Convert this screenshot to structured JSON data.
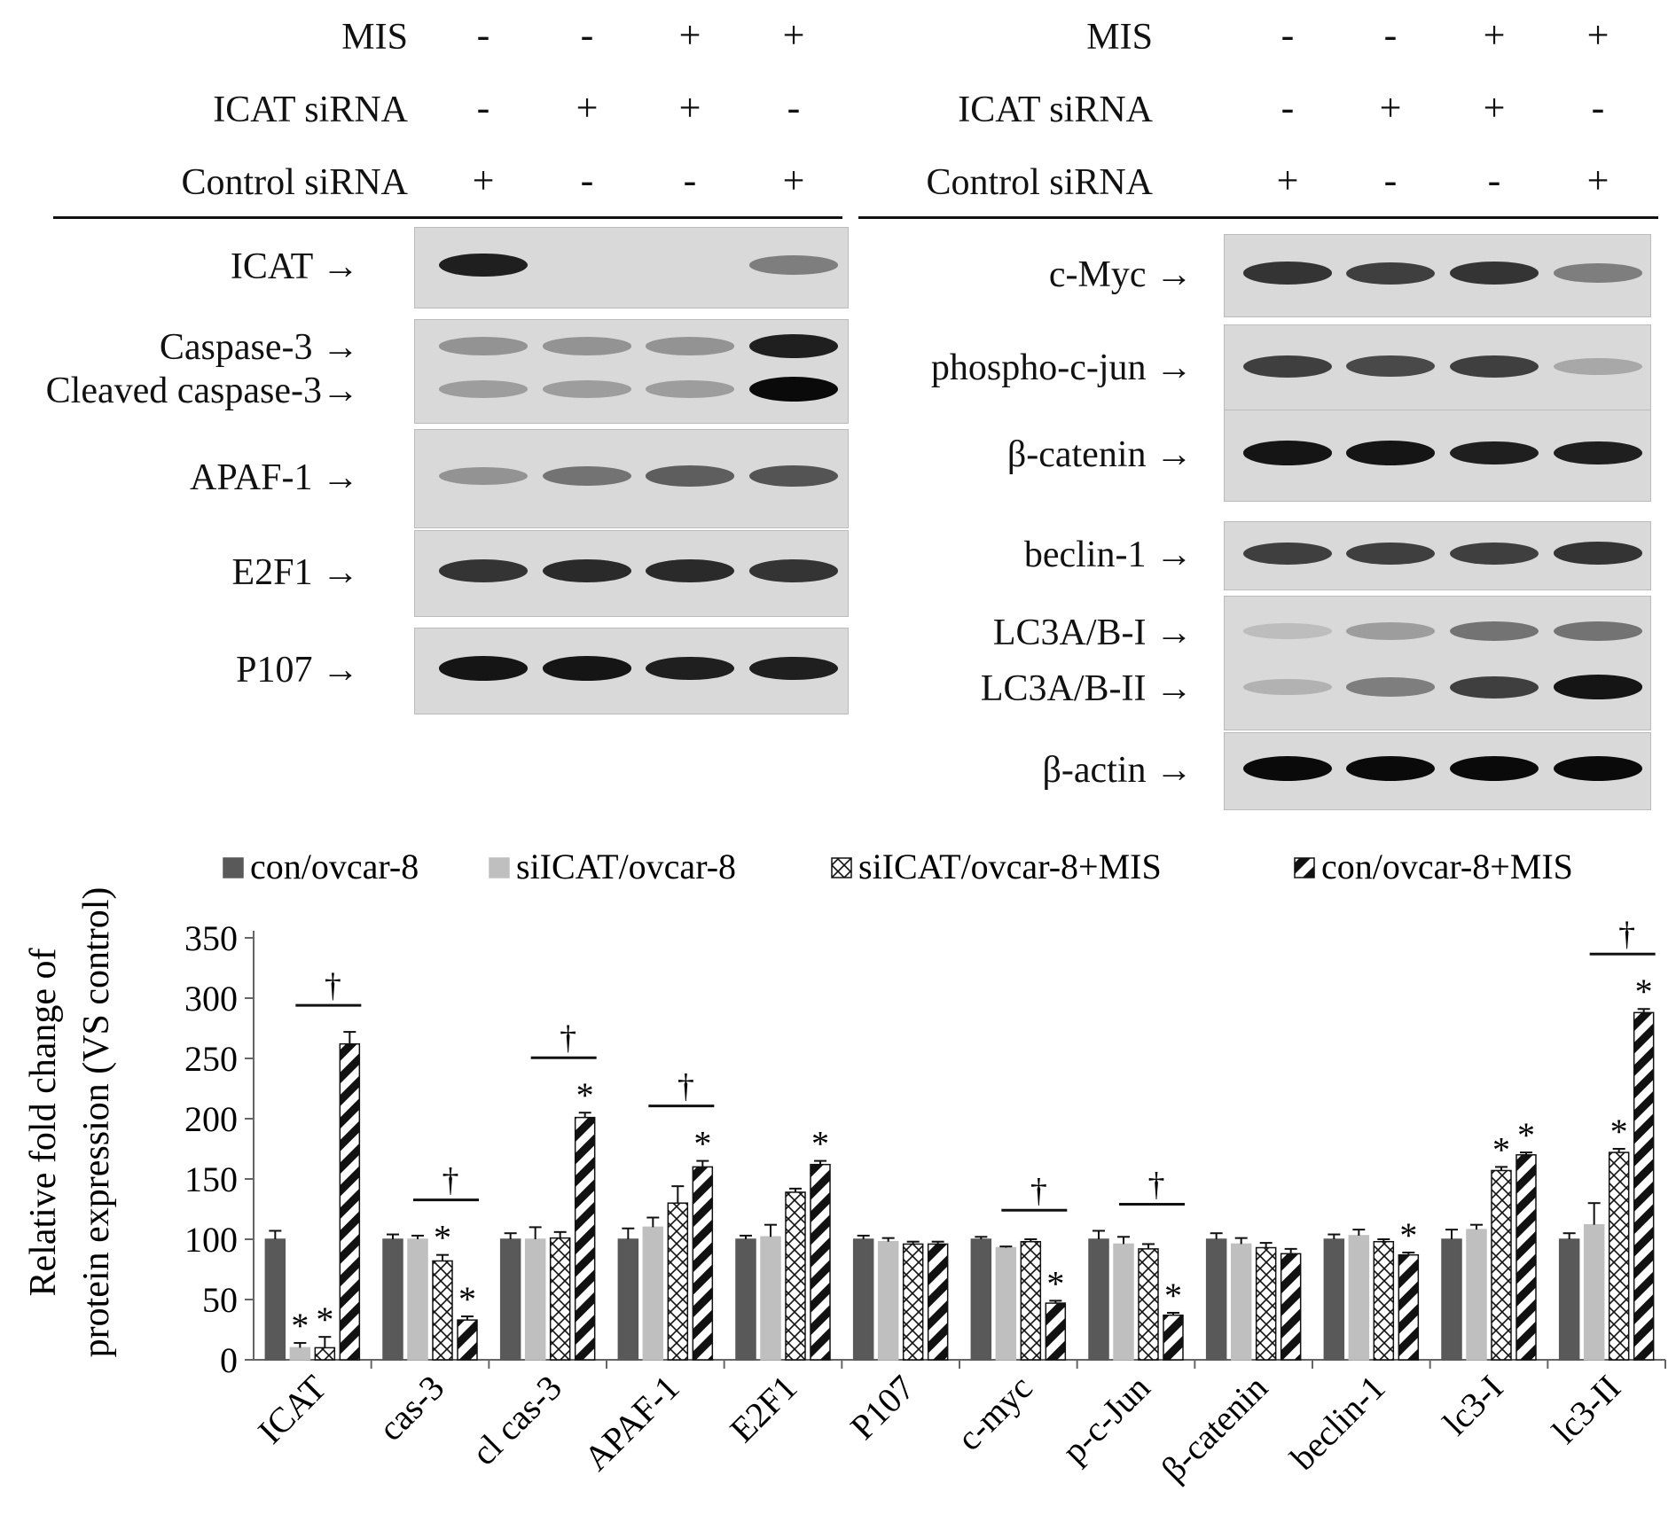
{
  "conditions": {
    "rows": [
      {
        "label": "MIS",
        "signs": [
          "-",
          "-",
          "+",
          "+"
        ]
      },
      {
        "label": "ICAT siRNA",
        "signs": [
          "-",
          "+",
          "+",
          "-"
        ]
      },
      {
        "label": "Control siRNA",
        "signs": [
          "+",
          "-",
          "-",
          "+"
        ]
      }
    ]
  },
  "left_blots": [
    {
      "label": "ICAT →",
      "bands": [
        0.9,
        0.02,
        0.02,
        0.45
      ]
    },
    {
      "label": "Caspase-3 →",
      "label2": "Cleaved caspase-3→",
      "bands": [
        0.35,
        0.35,
        0.35,
        0.9
      ],
      "bands2": [
        0.3,
        0.3,
        0.3,
        1.0
      ]
    },
    {
      "label": "APAF-1 →",
      "bands": [
        0.35,
        0.5,
        0.6,
        0.65
      ]
    },
    {
      "label": "E2F1 →",
      "bands": [
        0.8,
        0.85,
        0.85,
        0.8
      ]
    },
    {
      "label": "P107 →",
      "bands": [
        0.95,
        0.95,
        0.9,
        0.9
      ]
    }
  ],
  "right_blots": [
    {
      "label": "c-Myc →",
      "bands": [
        0.8,
        0.75,
        0.8,
        0.45
      ]
    },
    {
      "label": "phospho-c-jun →",
      "bands": [
        0.75,
        0.7,
        0.75,
        0.25
      ]
    },
    {
      "label": "β-catenin →",
      "bands": [
        0.95,
        0.95,
        0.9,
        0.9
      ]
    },
    {
      "label": "beclin-1 →",
      "bands": [
        0.75,
        0.75,
        0.75,
        0.8
      ]
    },
    {
      "label": "LC3A/B-I →",
      "label2": "LC3A/B-II →",
      "bands": [
        0.15,
        0.3,
        0.5,
        0.5
      ],
      "bands2": [
        0.2,
        0.45,
        0.75,
        0.95
      ]
    },
    {
      "label": "β-actin →",
      "bands": [
        1.0,
        1.0,
        1.0,
        1.0
      ]
    }
  ],
  "chart_data": {
    "type": "bar",
    "ylabel": "Relative fold change of protein expression (VS control)",
    "ylabel_line1": "Relative fold change of",
    "ylabel_line2": "protein expression (VS control)",
    "ylim": [
      0,
      350
    ],
    "yticks": [
      "0",
      "50",
      "100",
      "150",
      "200",
      "250",
      "300",
      "350"
    ],
    "legend_position": "top",
    "categories": [
      "ICAT",
      "cas-3",
      "cl cas-3",
      "APAF-1",
      "E2F1",
      "P107",
      "c-myc",
      "p-c-Jun",
      "β-catenin",
      "beclin-1",
      "lc3-I",
      "lc3-II"
    ],
    "series": [
      {
        "name": "con/ovcar-8",
        "pattern": "solid-dark",
        "values": [
          100,
          100,
          100,
          100,
          100,
          100,
          100,
          100,
          100,
          100,
          100,
          100
        ],
        "errors": [
          7,
          4,
          5,
          9,
          3,
          3,
          2,
          7,
          5,
          4,
          8,
          5
        ]
      },
      {
        "name": "siICAT/ovcar-8",
        "pattern": "solid-light",
        "values": [
          10,
          100,
          100,
          110,
          102,
          98,
          93,
          96,
          96,
          103,
          108,
          112
        ],
        "errors": [
          4,
          3,
          10,
          8,
          10,
          3,
          1,
          6,
          5,
          5,
          4,
          18
        ]
      },
      {
        "name": "siICAT/ovcar-8+MIS",
        "pattern": "crosshatch",
        "values": [
          10,
          82,
          101,
          130,
          139,
          96,
          98,
          92,
          93,
          98,
          157,
          172
        ],
        "errors": [
          9,
          5,
          5,
          14,
          3,
          2,
          2,
          4,
          4,
          2,
          3,
          3
        ]
      },
      {
        "name": "con/ovcar-8+MIS",
        "pattern": "diagonal",
        "values": [
          262,
          33,
          201,
          160,
          162,
          96,
          47,
          37,
          88,
          87,
          170,
          288
        ],
        "errors": [
          10,
          3,
          4,
          5,
          3,
          2,
          2,
          2,
          4,
          2,
          2,
          3
        ]
      }
    ],
    "stars": [
      [
        null,
        "*",
        "*",
        null
      ],
      [
        null,
        null,
        "*",
        "*"
      ],
      [
        null,
        null,
        null,
        "*"
      ],
      [
        null,
        null,
        null,
        "*"
      ],
      [
        null,
        null,
        null,
        "*"
      ],
      [
        null,
        null,
        null,
        null
      ],
      [
        null,
        null,
        null,
        "*"
      ],
      [
        null,
        null,
        null,
        "*"
      ],
      [
        null,
        null,
        null,
        null
      ],
      [
        null,
        null,
        null,
        "*"
      ],
      [
        null,
        null,
        "*",
        "*"
      ],
      [
        null,
        null,
        "*",
        "*"
      ]
    ],
    "dagger_groups": [
      0,
      1,
      2,
      3,
      6,
      7,
      11
    ],
    "dagger_symbol": "†",
    "star_symbol": "*"
  }
}
